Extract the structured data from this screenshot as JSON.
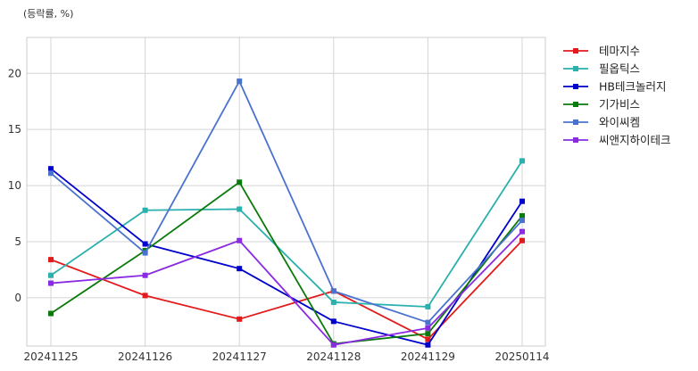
{
  "chart_data": {
    "type": "line",
    "unit_note": "(등락률, %)",
    "categories": [
      "20241125",
      "20241126",
      "20241127",
      "20241128",
      "20241129",
      "20250114"
    ],
    "ylim": [
      -4.3,
      23.2
    ],
    "yticks": [
      0,
      5,
      10,
      15,
      20
    ],
    "grid": true,
    "legend_position": "right",
    "series": [
      {
        "name": "테마지수",
        "color": "#e31a1c",
        "values": [
          3.4,
          0.2,
          -1.9,
          0.6,
          -3.7,
          5.1
        ]
      },
      {
        "name": "필옵틱스",
        "color": "#2ab0ad",
        "values": [
          2.0,
          7.8,
          7.9,
          -0.4,
          -0.8,
          12.2
        ]
      },
      {
        "name": "HB테크놀러지",
        "color": "#0000cc",
        "values": [
          11.5,
          4.8,
          2.6,
          -2.1,
          -4.2,
          8.6
        ]
      },
      {
        "name": "기가비스",
        "color": "#0a7a0a",
        "values": [
          -1.4,
          4.2,
          10.3,
          -4.1,
          -3.2,
          7.3
        ]
      },
      {
        "name": "와이씨켐",
        "color": "#4a72d0",
        "values": [
          11.1,
          4.0,
          19.3,
          0.6,
          -2.2,
          6.9
        ]
      },
      {
        "name": "씨앤지하이테크",
        "color": "#8a2be2",
        "values": [
          1.3,
          2.0,
          5.1,
          -4.2,
          -2.7,
          5.9
        ]
      }
    ]
  }
}
